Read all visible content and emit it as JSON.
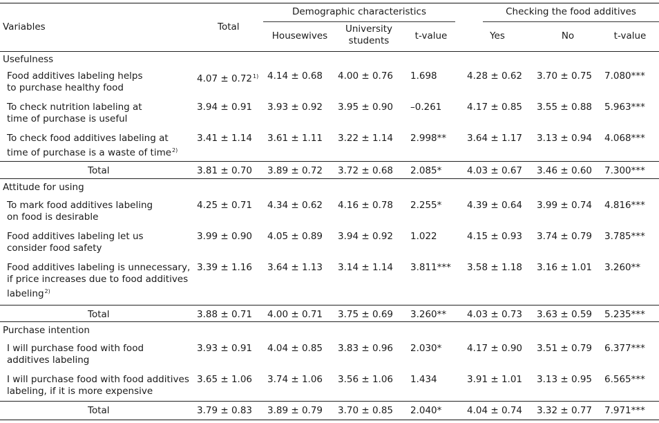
{
  "header": {
    "variables": "Variables",
    "total": "Total",
    "demographic": "Demographic characteristics",
    "checking": "Checking the food additives",
    "housewives": "Housewives",
    "university_line1": "University",
    "university_line2": "students",
    "tvalue1": "t-value",
    "yes": "Yes",
    "no": "No",
    "tvalue2": "t-value"
  },
  "sections": [
    {
      "title": "Usefulness",
      "rows": [
        {
          "lines": [
            "Food additives labeling helps",
            "to purchase healthy food"
          ],
          "sup": "",
          "total": "4.07 ± 0.72",
          "total_sup": "1)",
          "housewives": "4.14 ± 0.68",
          "students": "4.00 ± 0.76",
          "t1": "1.698",
          "yes": "4.28 ± 0.62",
          "no": "3.70 ± 0.75",
          "t2": "7.080***"
        },
        {
          "lines": [
            "To check nutrition labeling at",
            "time of purchase is useful"
          ],
          "sup": "",
          "total": "3.94 ± 0.91",
          "total_sup": "",
          "housewives": "3.93 ± 0.92",
          "students": "3.95 ± 0.90",
          "t1": "–0.261",
          "yes": "4.17 ± 0.85",
          "no": "3.55 ± 0.88",
          "t2": "5.963***"
        },
        {
          "lines": [
            "To check food additives labeling at",
            "time of purchase is a waste of time"
          ],
          "sup": "2)",
          "total": "3.41 ± 1.14",
          "total_sup": "",
          "housewives": "3.61 ± 1.11",
          "students": "3.22 ± 1.14",
          "t1": "2.998**",
          "yes": "3.64 ± 1.17",
          "no": "3.13 ± 0.94",
          "t2": "4.068***"
        }
      ],
      "total_row": {
        "label": "Total",
        "total": "3.81 ± 0.70",
        "housewives": "3.89 ± 0.72",
        "students": "3.72 ± 0.68",
        "t1": "2.085*",
        "yes": "4.03 ± 0.67",
        "no": "3.46 ± 0.60",
        "t2": "7.300***"
      }
    },
    {
      "title": "Attitude for using",
      "rows": [
        {
          "lines": [
            "To mark food additives labeling",
            "on food is desirable"
          ],
          "sup": "",
          "total": "4.25 ± 0.71",
          "total_sup": "",
          "housewives": "4.34 ± 0.62",
          "students": "4.16 ± 0.78",
          "t1": "2.255*",
          "yes": "4.39 ± 0.64",
          "no": "3.99 ± 0.74",
          "t2": "4.816***"
        },
        {
          "lines": [
            "Food additives labeling let us",
            "consider food safety"
          ],
          "sup": "",
          "total": "3.99 ± 0.90",
          "total_sup": "",
          "housewives": "4.05 ± 0.89",
          "students": "3.94 ± 0.92",
          "t1": "1.022",
          "yes": "4.15 ± 0.93",
          "no": "3.74 ± 0.79",
          "t2": "3.785***"
        },
        {
          "lines": [
            "Food additives labeling is unnecessary,",
            "if price increases due to food additives",
            "labeling"
          ],
          "sup": "2)",
          "total": "3.39 ± 1.16",
          "total_sup": "",
          "housewives": "3.64 ± 1.13",
          "students": "3.14 ± 1.14",
          "t1": "3.811***",
          "yes": "3.58 ± 1.18",
          "no": "3.16 ± 1.01",
          "t2": "3.260**"
        }
      ],
      "total_row": {
        "label": "Total",
        "total": "3.88 ± 0.71",
        "housewives": "4.00 ± 0.71",
        "students": "3.75 ± 0.69",
        "t1": "3.260**",
        "yes": "4.03 ± 0.73",
        "no": "3.63 ± 0.59",
        "t2": "5.235***"
      }
    },
    {
      "title": "Purchase intention",
      "rows": [
        {
          "lines": [
            "I will purchase food with food",
            "additives labeling"
          ],
          "sup": "",
          "total": "3.93 ± 0.91",
          "total_sup": "",
          "housewives": "4.04 ± 0.85",
          "students": "3.83 ± 0.96",
          "t1": "2.030*",
          "yes": "4.17 ± 0.90",
          "no": "3.51 ± 0.79",
          "t2": "6.377***"
        },
        {
          "lines": [
            "I will purchase food with food  additives",
            "labeling, if it is more expensive"
          ],
          "sup": "",
          "total": "3.65 ± 1.06",
          "total_sup": "",
          "housewives": "3.74 ± 1.06",
          "students": "3.56 ± 1.06",
          "t1": "1.434",
          "yes": "3.91 ± 1.01",
          "no": "3.13 ± 0.95",
          "t2": "6.565***"
        }
      ],
      "total_row": {
        "label": "Total",
        "total": "3.79 ± 0.83",
        "housewives": "3.89 ± 0.79",
        "students": "3.70 ± 0.85",
        "t1": "2.040*",
        "yes": "4.04 ± 0.74",
        "no": "3.32 ± 0.77",
        "t2": "7.971***"
      }
    }
  ]
}
